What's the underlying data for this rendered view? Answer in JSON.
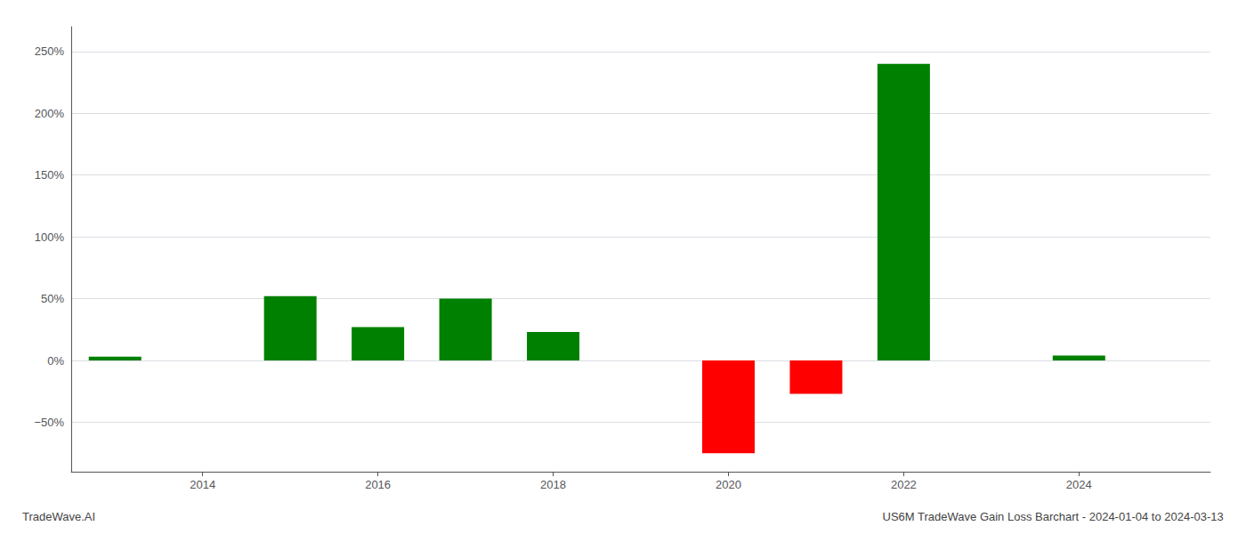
{
  "chart_data": {
    "type": "bar",
    "title": "US6M TradeWave Gain Loss Barchart - 2024-01-04 to 2024-03-13",
    "annotations": [
      "TradeWave.AI"
    ],
    "x": [
      2013,
      2015,
      2016,
      2017,
      2018,
      2020,
      2021,
      2022,
      2024
    ],
    "values": [
      3.0,
      52.0,
      27.0,
      50.0,
      23.0,
      -75.0,
      -27.0,
      240.0,
      4.0
    ],
    "colors": [
      "#008000",
      "#008000",
      "#008000",
      "#008000",
      "#008000",
      "#ff0000",
      "#ff0000",
      "#008000",
      "#008000"
    ],
    "xlim": [
      2012.5,
      2025.5
    ],
    "xticks": [
      2014,
      2016,
      2018,
      2020,
      2022,
      2024
    ],
    "ylim": [
      -90,
      270
    ],
    "yticks": [
      {
        "value": -50,
        "label": "−50%"
      },
      {
        "value": 0,
        "label": "0%"
      },
      {
        "value": 50,
        "label": "50%"
      },
      {
        "value": 100,
        "label": "100%"
      },
      {
        "value": 150,
        "label": "150%"
      },
      {
        "value": 200,
        "label": "200%"
      },
      {
        "value": 250,
        "label": "250%"
      }
    ],
    "grid": true
  }
}
